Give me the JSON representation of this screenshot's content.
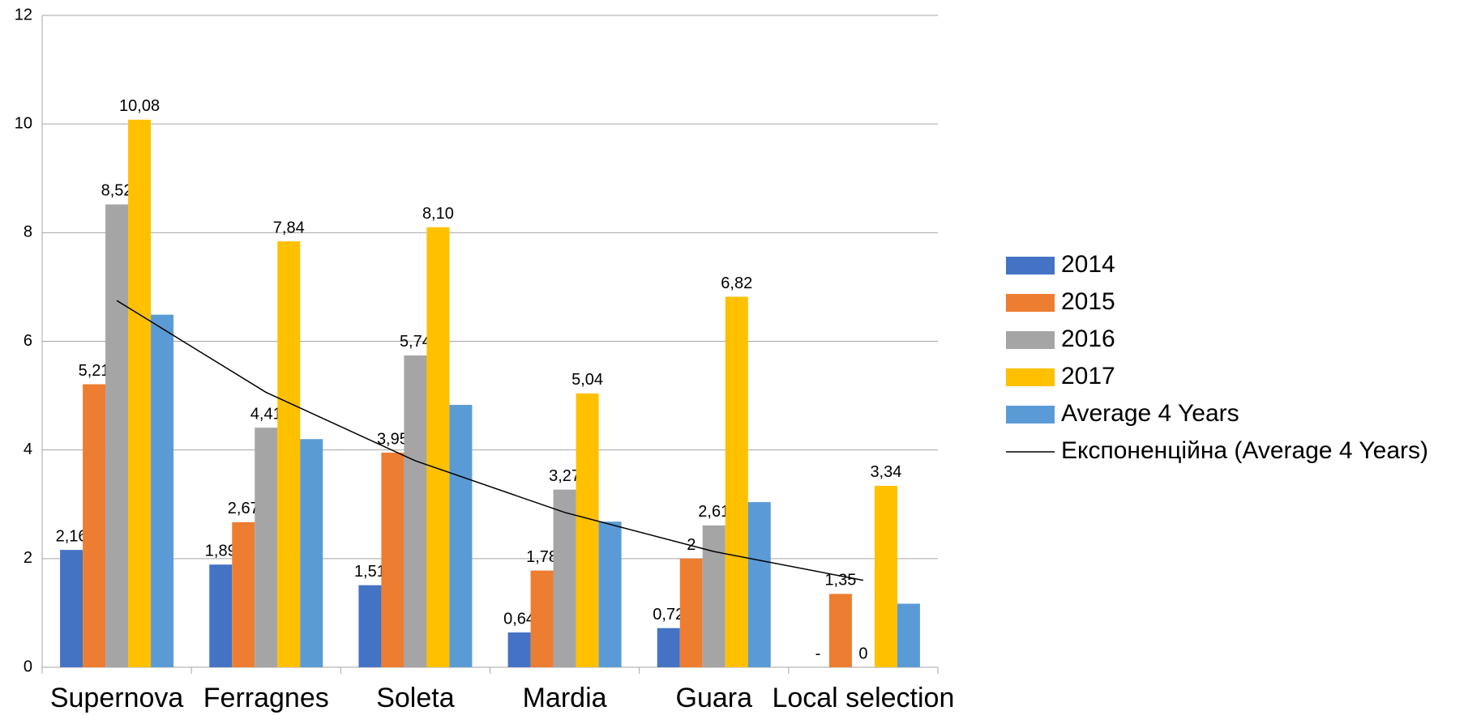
{
  "chart_data": {
    "type": "bar",
    "categories": [
      "Supernova",
      "Ferragnes",
      "Soleta",
      "Mardia",
      "Guara",
      "Local selection"
    ],
    "series": [
      {
        "name": "2014",
        "color": "#4472c4",
        "values": [
          2.16,
          1.89,
          1.51,
          0.64,
          0.72,
          null
        ],
        "value_labels": [
          "2,16",
          "1,89",
          "1,51",
          "0,64",
          "0,72",
          "-"
        ]
      },
      {
        "name": "2015",
        "color": "#ed7d31",
        "values": [
          5.21,
          2.67,
          3.95,
          1.78,
          2,
          1.35
        ],
        "value_labels": [
          "5,21",
          "2,67",
          "3,95",
          "1,78",
          "2",
          "1,35"
        ]
      },
      {
        "name": "2016",
        "color": "#a5a5a5",
        "values": [
          8.52,
          4.41,
          5.74,
          3.27,
          2.61,
          0
        ],
        "value_labels": [
          "8,52",
          "4,41",
          "5,74",
          "3,27",
          "2,61",
          "0"
        ]
      },
      {
        "name": "2017",
        "color": "#ffc000",
        "values": [
          10.08,
          7.84,
          8.1,
          5.04,
          6.82,
          3.34
        ],
        "value_labels": [
          "10,08",
          "7,84",
          "8,10",
          "5,04",
          "6,82",
          "3,34"
        ]
      },
      {
        "name": "Average 4 Years",
        "color": "#5b9bd5",
        "values": [
          6.49,
          4.2,
          4.83,
          2.68,
          3.04,
          1.17
        ]
      }
    ],
    "trendline": {
      "name": "Експоненційна (Average 4 Years)",
      "color": "#000000",
      "values": [
        6.75,
        5.06,
        3.8,
        2.85,
        2.13,
        1.6
      ]
    },
    "ylim": [
      0,
      12
    ],
    "yticks": [
      0,
      2,
      4,
      6,
      8,
      10,
      12
    ],
    "grid": true,
    "legend": "right"
  }
}
